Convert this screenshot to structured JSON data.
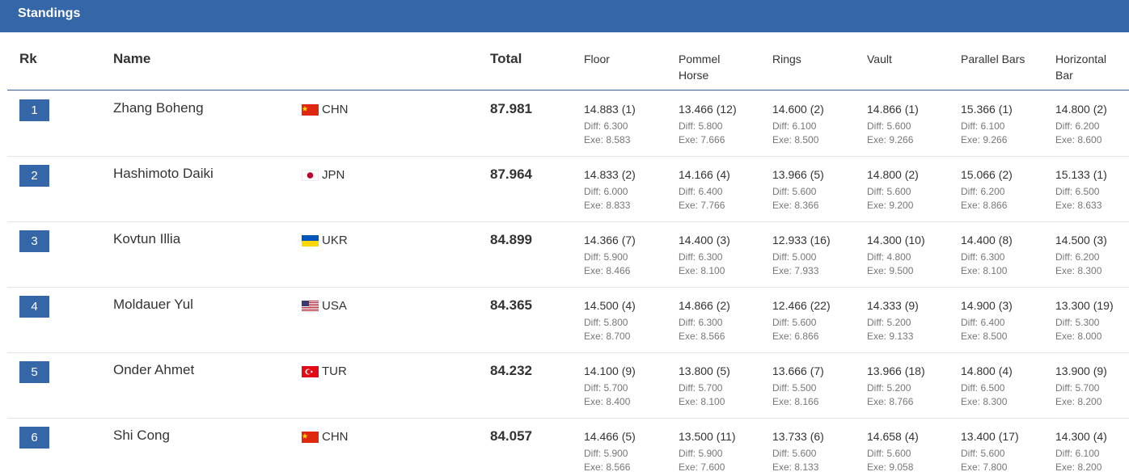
{
  "header": {
    "title": "Standings"
  },
  "table": {
    "columns": [
      "Rk",
      "Name",
      "Total",
      "Floor",
      "Pommel Horse",
      "Rings",
      "Vault",
      "Parallel Bars",
      "Horizontal Bar"
    ],
    "rows": [
      {
        "rank": "1",
        "name": "Zhang Boheng",
        "country": "CHN",
        "total": "87.981",
        "scores": [
          [
            "14.883 (1)",
            "Diff: 6.300",
            "Exe: 8.583"
          ],
          [
            "13.466 (12)",
            "Diff: 5.800",
            "Exe: 7.666"
          ],
          [
            "14.600 (2)",
            "Diff: 6.100",
            "Exe: 8.500"
          ],
          [
            "14.866 (1)",
            "Diff: 5.600",
            "Exe: 9.266"
          ],
          [
            "15.366 (1)",
            "Diff: 6.100",
            "Exe: 9.266"
          ],
          [
            "14.800 (2)",
            "Diff: 6.200",
            "Exe: 8.600"
          ]
        ]
      },
      {
        "rank": "2",
        "name": "Hashimoto Daiki",
        "country": "JPN",
        "total": "87.964",
        "scores": [
          [
            "14.833 (2)",
            "Diff: 6.000",
            "Exe: 8.833"
          ],
          [
            "14.166 (4)",
            "Diff: 6.400",
            "Exe: 7.766"
          ],
          [
            "13.966 (5)",
            "Diff: 5.600",
            "Exe: 8.366"
          ],
          [
            "14.800 (2)",
            "Diff: 5.600",
            "Exe: 9.200"
          ],
          [
            "15.066 (2)",
            "Diff: 6.200",
            "Exe: 8.866"
          ],
          [
            "15.133 (1)",
            "Diff: 6.500",
            "Exe: 8.633"
          ]
        ]
      },
      {
        "rank": "3",
        "name": "Kovtun Illia",
        "country": "UKR",
        "total": "84.899",
        "scores": [
          [
            "14.366 (7)",
            "Diff: 5.900",
            "Exe: 8.466"
          ],
          [
            "14.400 (3)",
            "Diff: 6.300",
            "Exe: 8.100"
          ],
          [
            "12.933 (16)",
            "Diff: 5.000",
            "Exe: 7.933"
          ],
          [
            "14.300 (10)",
            "Diff: 4.800",
            "Exe: 9.500"
          ],
          [
            "14.400 (8)",
            "Diff: 6.300",
            "Exe: 8.100"
          ],
          [
            "14.500 (3)",
            "Diff: 6.200",
            "Exe: 8.300"
          ]
        ]
      },
      {
        "rank": "4",
        "name": "Moldauer Yul",
        "country": "USA",
        "total": "84.365",
        "scores": [
          [
            "14.500 (4)",
            "Diff: 5.800",
            "Exe: 8.700"
          ],
          [
            "14.866 (2)",
            "Diff: 6.300",
            "Exe: 8.566"
          ],
          [
            "12.466 (22)",
            "Diff: 5.600",
            "Exe: 6.866"
          ],
          [
            "14.333 (9)",
            "Diff: 5.200",
            "Exe: 9.133"
          ],
          [
            "14.900 (3)",
            "Diff: 6.400",
            "Exe: 8.500"
          ],
          [
            "13.300 (19)",
            "Diff: 5.300",
            "Exe: 8.000"
          ]
        ]
      },
      {
        "rank": "5",
        "name": "Onder Ahmet",
        "country": "TUR",
        "total": "84.232",
        "scores": [
          [
            "14.100 (9)",
            "Diff: 5.700",
            "Exe: 8.400"
          ],
          [
            "13.800 (5)",
            "Diff: 5.700",
            "Exe: 8.100"
          ],
          [
            "13.666 (7)",
            "Diff: 5.500",
            "Exe: 8.166"
          ],
          [
            "13.966 (18)",
            "Diff: 5.200",
            "Exe: 8.766"
          ],
          [
            "14.800 (4)",
            "Diff: 6.500",
            "Exe: 8.300"
          ],
          [
            "13.900 (9)",
            "Diff: 5.700",
            "Exe: 8.200"
          ]
        ]
      },
      {
        "rank": "6",
        "name": "Shi Cong",
        "country": "CHN",
        "total": "84.057",
        "scores": [
          [
            "14.466 (5)",
            "Diff: 5.900",
            "Exe: 8.566"
          ],
          [
            "13.500 (11)",
            "Diff: 5.900",
            "Exe: 7.600"
          ],
          [
            "13.733 (6)",
            "Diff: 5.600",
            "Exe: 8.133"
          ],
          [
            "14.658 (4)",
            "Diff: 5.600",
            "Exe: 9.058"
          ],
          [
            "13.400 (17)",
            "Diff: 5.600",
            "Exe: 7.800"
          ],
          [
            "14.300 (4)",
            "Diff: 6.100",
            "Exe: 8.200"
          ]
        ]
      }
    ]
  }
}
